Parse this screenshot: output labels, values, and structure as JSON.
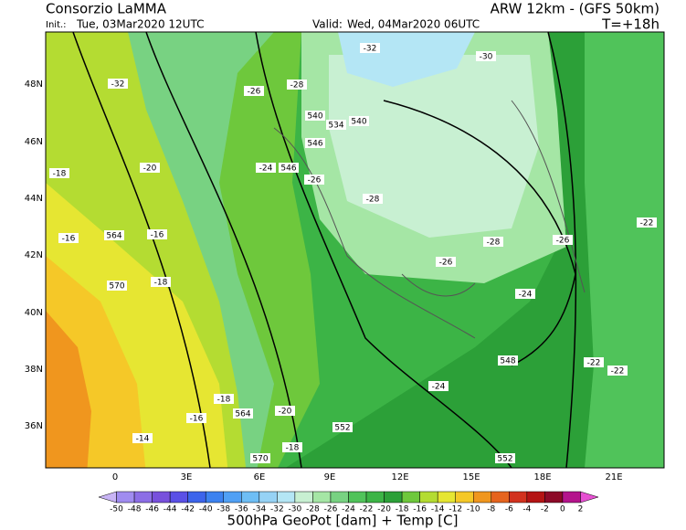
{
  "header": {
    "brand": "Consorzio LaMMA",
    "model": "ARW 12km - (GFS 50km)",
    "init_label": "Init.:",
    "init": "Tue, 03Mar2020 12UTC",
    "valid_label": "Valid:",
    "valid": "Wed, 04Mar2020 06UTC",
    "step": "T=+18h"
  },
  "map": {
    "lat_labels": [
      "48N",
      "46N",
      "44N",
      "42N",
      "40N",
      "38N",
      "36N"
    ],
    "lon_labels": [
      "0",
      "3E",
      "6E",
      "9E",
      "12E",
      "15E",
      "18E",
      "21E"
    ],
    "contour_labels": [
      "-32",
      "-30",
      "-32",
      "-26",
      "-28",
      "540",
      "534",
      "540",
      "546",
      "546",
      "-24",
      "-20",
      "-18",
      "-16",
      "564",
      "-16",
      "570",
      "-18",
      "-26",
      "-28",
      "-28",
      "-26",
      "-24",
      "-26",
      "-22",
      "548",
      "-24",
      "-22",
      "552",
      "-18",
      "564",
      "-20",
      "-16",
      "-14",
      "570",
      "-18",
      "552",
      "-22"
    ]
  },
  "colorbar": {
    "labels": [
      -50,
      -48,
      -46,
      -44,
      -42,
      -40,
      -38,
      -36,
      -34,
      -32,
      -30,
      -28,
      -26,
      -24,
      -22,
      -20,
      -18,
      -16,
      -14,
      -12,
      -10,
      -8,
      -6,
      -4,
      -2,
      0,
      2
    ],
    "colors": [
      "#c8b4f5",
      "#a08cf0",
      "#8c6ee6",
      "#7850dc",
      "#5a50e6",
      "#3c64eb",
      "#3c82f0",
      "#50a0f5",
      "#6ebef5",
      "#96d2f5",
      "#b4e6f5",
      "#c8f0d2",
      "#a5e6a5",
      "#78d282",
      "#50c35a",
      "#3cb446",
      "#2ca038",
      "#6ec83c",
      "#b4dc32",
      "#e6e632",
      "#f5c828",
      "#f0961e",
      "#e6641e",
      "#d2321e",
      "#b41414",
      "#8c0a28",
      "#b4148c",
      "#e650d2"
    ],
    "title": "500hPa GeoPot [dam] + Temp [C]"
  }
}
